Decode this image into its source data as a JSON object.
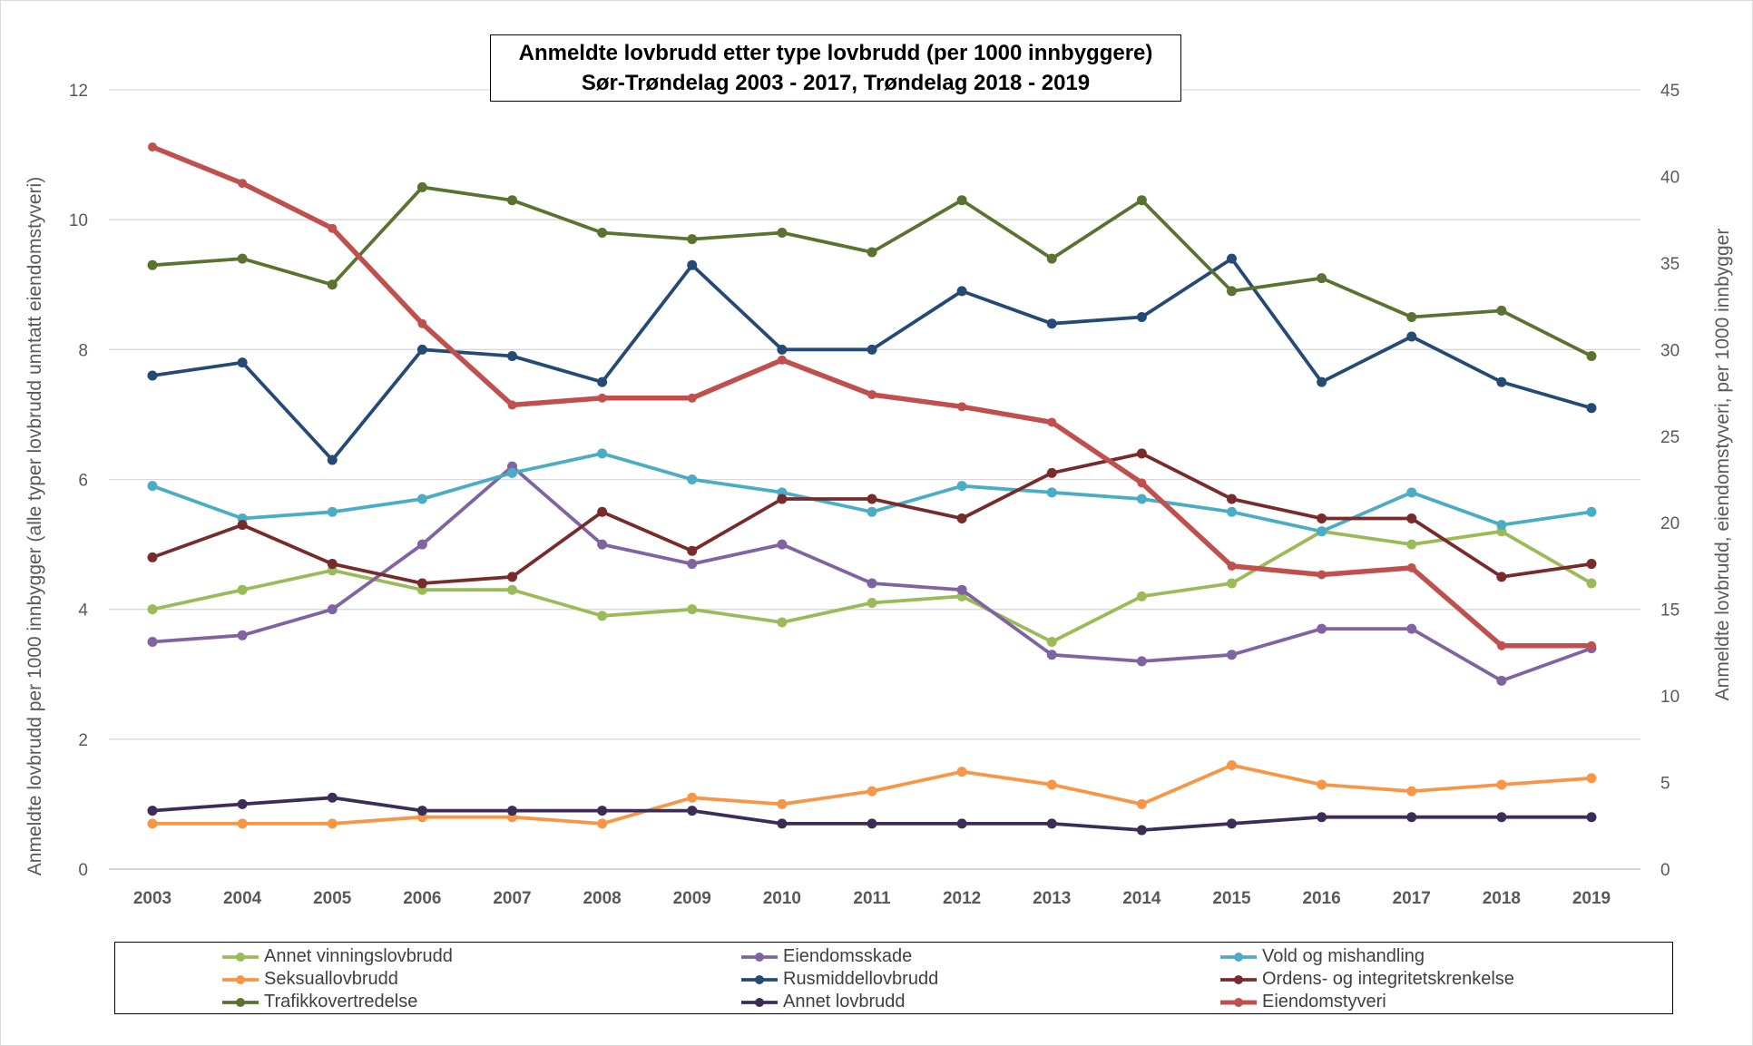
{
  "chart_data": {
    "type": "line",
    "title": "Anmeldte lovbrudd etter type lovbrudd (per 1000 innbyggere)",
    "subtitle": "Sør-Trøndelag 2003 - 2017, Trøndelag 2018 - 2019",
    "ylabel": "Anmeldte lovbrudd per 1000 innbygger (alle typer lovbrudd unntatt eiendomstyveri)",
    "ylabel_right": "Anmeldte lovbrudd,  eiendomstyveri, per 1000 innbygger",
    "ylim": [
      0,
      12
    ],
    "yticks": [
      "0",
      "2",
      "4",
      "6",
      "8",
      "10",
      "12"
    ],
    "ylim_right": [
      0,
      45
    ],
    "yticks_right": [
      "0",
      "5",
      "10",
      "15",
      "20",
      "25",
      "30",
      "35",
      "40",
      "45"
    ],
    "grid": true,
    "legend_position": "bottom",
    "categories": [
      "2003",
      "2004",
      "2005",
      "2006",
      "2007",
      "2008",
      "2009",
      "2010",
      "2011",
      "2012",
      "2013",
      "2014",
      "2015",
      "2016",
      "2017",
      "2018",
      "2019"
    ],
    "series": [
      {
        "name": "Annet vinningslovbrudd",
        "color": "#9bbb59",
        "axis": "left",
        "values": [
          4.0,
          4.3,
          4.6,
          4.3,
          4.3,
          3.9,
          4.0,
          3.8,
          4.1,
          4.2,
          3.5,
          4.2,
          4.4,
          5.2,
          5.0,
          5.2,
          4.4
        ]
      },
      {
        "name": "Eiendomsskade",
        "color": "#8064a2",
        "axis": "left",
        "values": [
          3.5,
          3.6,
          4.0,
          5.0,
          6.2,
          5.0,
          4.7,
          5.0,
          4.4,
          4.3,
          3.3,
          3.2,
          3.3,
          3.7,
          3.7,
          2.9,
          3.4
        ]
      },
      {
        "name": "Vold og mishandling",
        "color": "#4bacc6",
        "axis": "left",
        "values": [
          5.9,
          5.4,
          5.5,
          5.7,
          6.1,
          6.4,
          6.0,
          5.8,
          5.5,
          5.9,
          5.8,
          5.7,
          5.5,
          5.2,
          5.8,
          5.3,
          5.5
        ]
      },
      {
        "name": "Seksuallovbrudd",
        "color": "#f79646",
        "axis": "left",
        "values": [
          0.7,
          0.7,
          0.7,
          0.8,
          0.8,
          0.7,
          1.1,
          1.0,
          1.2,
          1.5,
          1.3,
          1.0,
          1.6,
          1.3,
          1.2,
          1.3,
          1.4
        ]
      },
      {
        "name": "Rusmiddellovbrudd",
        "color": "#254a75",
        "axis": "left",
        "values": [
          7.6,
          7.8,
          6.3,
          8.0,
          7.9,
          7.5,
          9.3,
          8.0,
          8.0,
          8.9,
          8.4,
          8.5,
          9.4,
          7.5,
          8.2,
          7.5,
          7.1
        ]
      },
      {
        "name": "Ordens- og integritetskrenkelse",
        "color": "#772b2b",
        "axis": "left",
        "values": [
          4.8,
          5.3,
          4.7,
          4.4,
          4.5,
          5.5,
          4.9,
          5.7,
          5.7,
          5.4,
          6.1,
          6.4,
          5.7,
          5.4,
          5.4,
          4.5,
          4.7
        ]
      },
      {
        "name": "Trafikkovertredelse",
        "color": "#5a7330",
        "axis": "left",
        "values": [
          9.3,
          9.4,
          9.0,
          10.5,
          10.3,
          9.8,
          9.7,
          9.8,
          9.5,
          10.3,
          9.4,
          10.3,
          8.9,
          9.1,
          8.5,
          8.6,
          7.9
        ]
      },
      {
        "name": "Annet lovbrudd",
        "color": "#3c2d57",
        "axis": "left",
        "values": [
          0.9,
          1.0,
          1.1,
          0.9,
          0.9,
          0.9,
          0.9,
          0.7,
          0.7,
          0.7,
          0.7,
          0.6,
          0.7,
          0.8,
          0.8,
          0.8,
          0.8
        ]
      },
      {
        "name": "Eiendomstyveri",
        "color": "#c0504d",
        "axis": "right",
        "values": [
          41.7,
          39.6,
          37.0,
          31.5,
          26.8,
          27.2,
          27.2,
          29.4,
          27.4,
          26.7,
          25.8,
          22.3,
          17.5,
          17.0,
          17.4,
          12.9,
          12.9
        ]
      }
    ]
  }
}
